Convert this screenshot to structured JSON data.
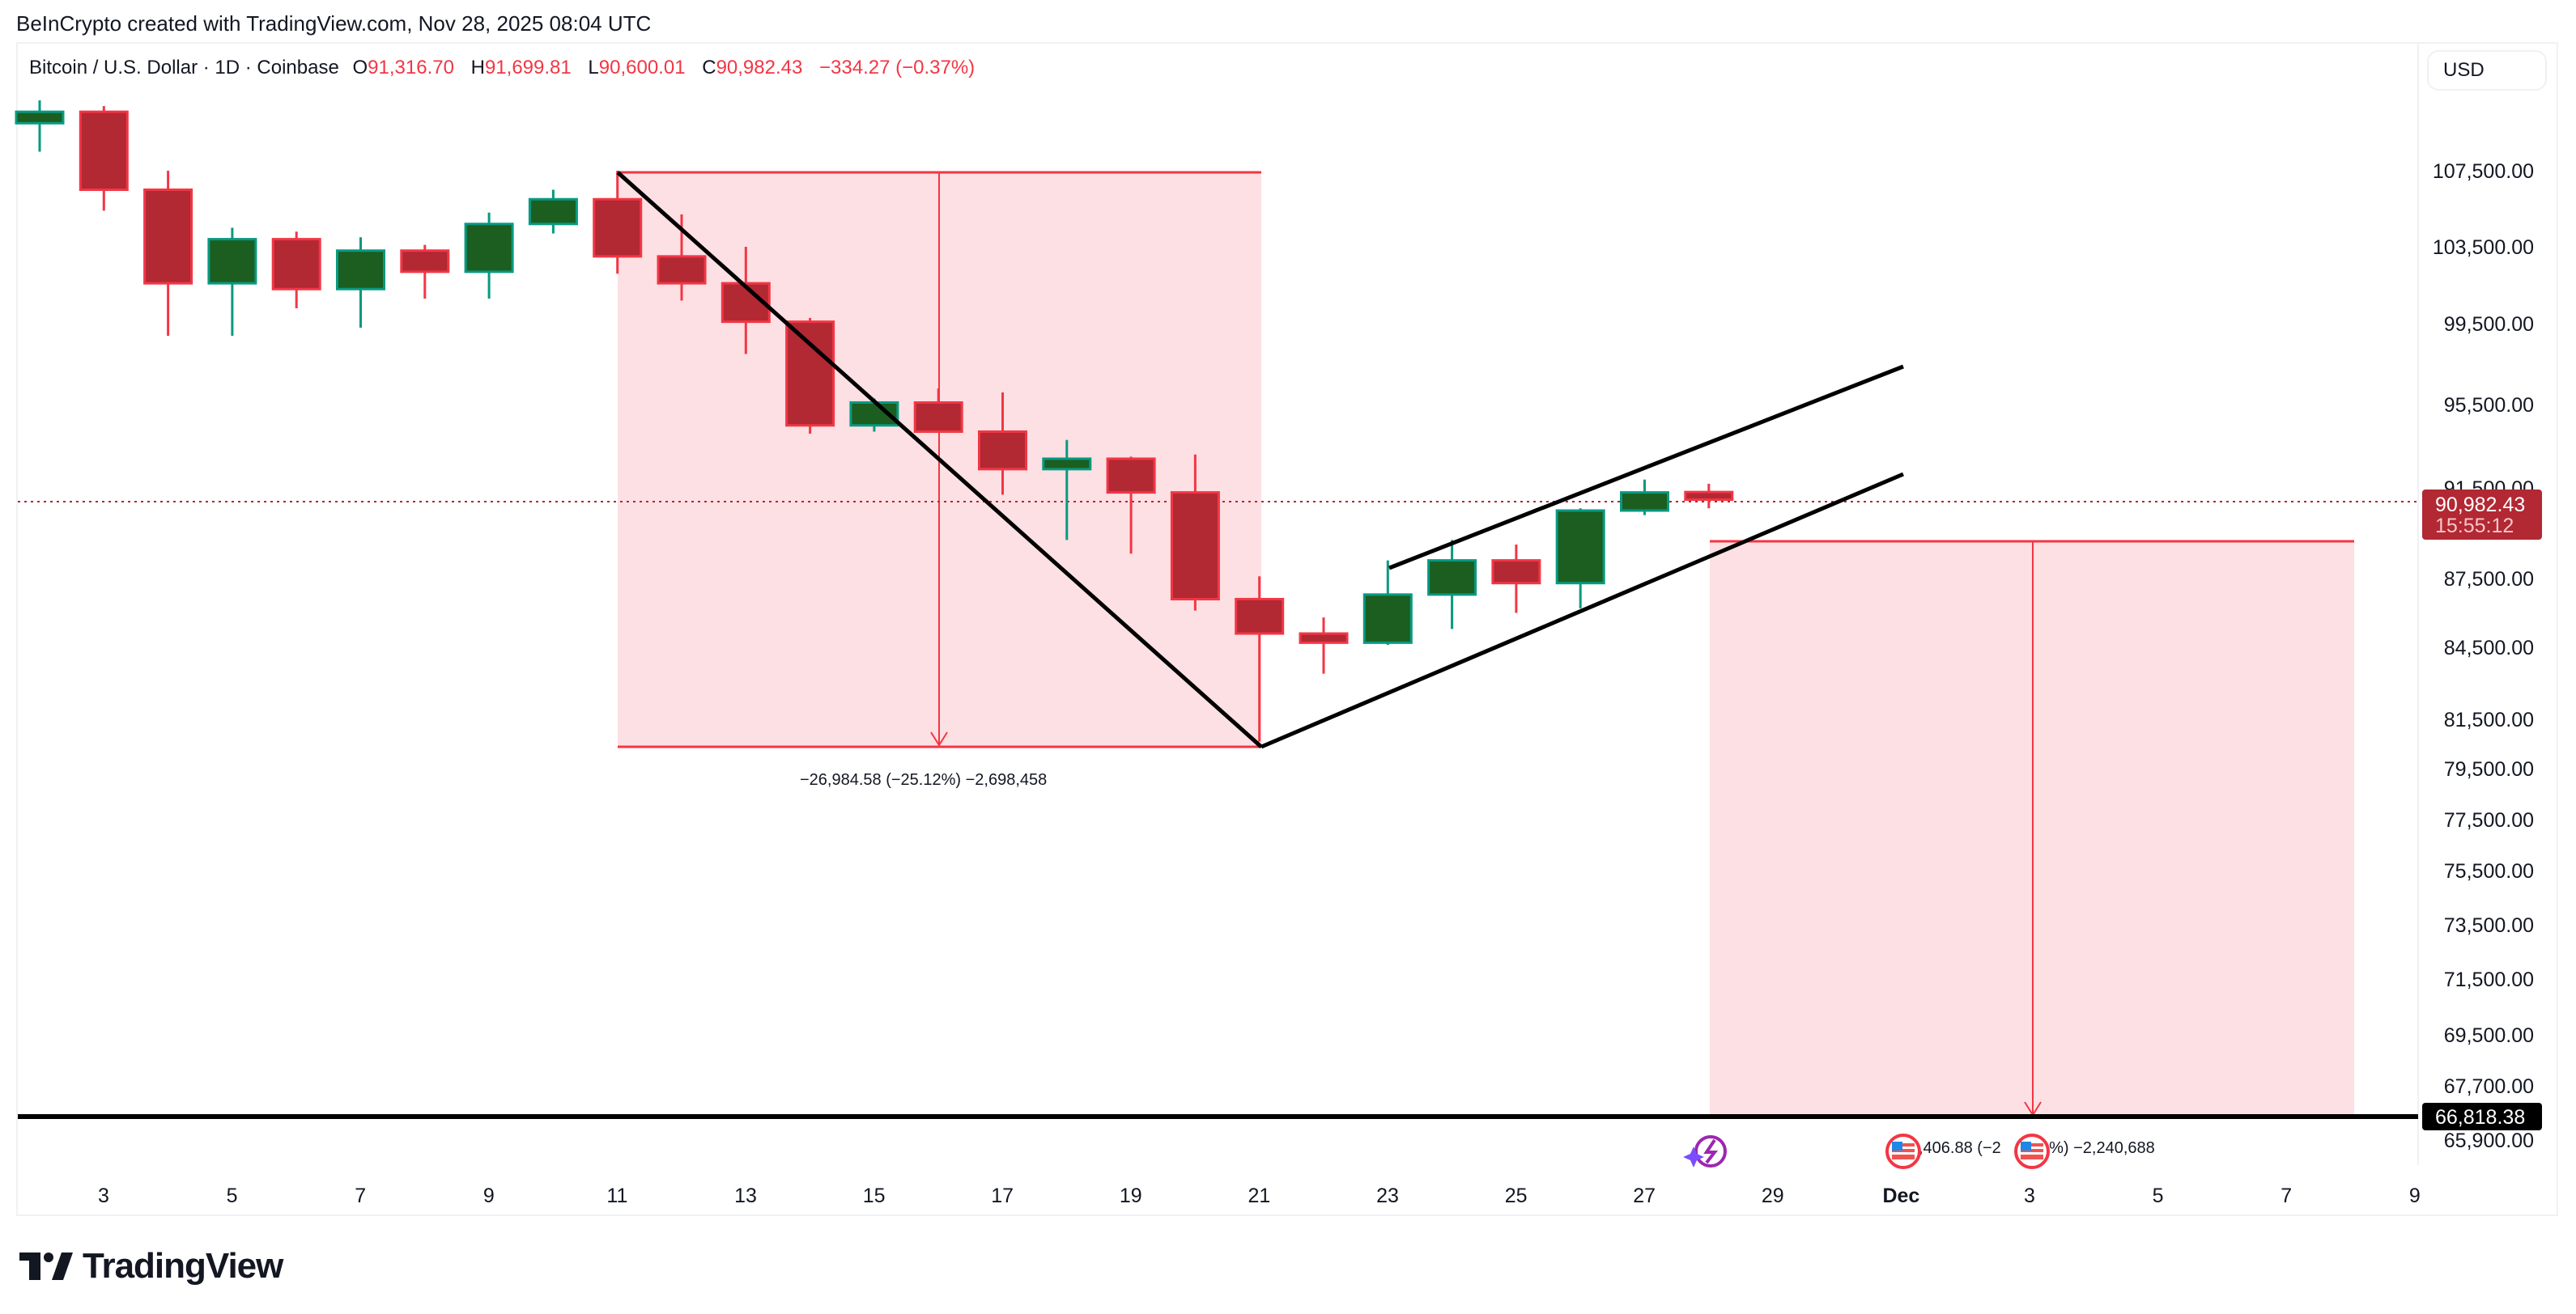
{
  "attribution": "BeInCrypto created with TradingView.com, Nov 28, 2025 08:04 UTC",
  "legend": {
    "symbol": "Bitcoin / U.S. Dollar · 1D · Coinbase",
    "open_label": "O",
    "open": "91,316.70",
    "high_label": "H",
    "high": "91,699.81",
    "low_label": "L",
    "low": "90,600.01",
    "close_label": "C",
    "close": "90,982.43",
    "change": "−334.27 (−0.37%)"
  },
  "currency_button": "USD",
  "price_axis": {
    "ticks": [
      "107,500.00",
      "103,500.00",
      "99,500.00",
      "95,500.00",
      "91,500.00",
      "87,500.00",
      "84,500.00",
      "81,500.00",
      "79,500.00",
      "77,500.00",
      "75,500.00",
      "73,500.00",
      "71,500.00",
      "69,500.00",
      "67,700.00",
      "65,900.00"
    ],
    "last_price": "90,982.43",
    "countdown": "15:55:12",
    "support_level": "66,818.38"
  },
  "time_axis": {
    "ticks": [
      "3",
      "5",
      "7",
      "9",
      "11",
      "13",
      "15",
      "17",
      "19",
      "21",
      "23",
      "25",
      "27",
      "29",
      "Dec",
      "3",
      "5",
      "7",
      "9"
    ]
  },
  "measurements": {
    "first": "−26,984.58 (−25.12%) −2,698,458",
    "second": ",406.88 (−2",
    "second_tail": "2%) −2,240,688"
  },
  "logo": "TradingView",
  "colors": {
    "up_body": "#1b5e20",
    "up_border": "#089981",
    "down_body": "#b22833",
    "down_border": "#f23645",
    "measure_fill": "#fde0e3",
    "measure_line": "#f23645",
    "last_price_bg": "#b22833",
    "support_bg": "#000000"
  },
  "chart_data": {
    "type": "candlestick",
    "title": "Bitcoin / U.S. Dollar · 1D · Coinbase",
    "xlabel": "",
    "ylabel": "USD",
    "ylim": [
      65000,
      109000
    ],
    "categories": [
      "Nov 2",
      "Nov 3",
      "Nov 4",
      "Nov 5",
      "Nov 6",
      "Nov 7",
      "Nov 8",
      "Nov 9",
      "Nov 10",
      "Nov 11",
      "Nov 12",
      "Nov 13",
      "Nov 14",
      "Nov 15",
      "Nov 16",
      "Nov 17",
      "Nov 18",
      "Nov 19",
      "Nov 20",
      "Nov 21",
      "Nov 22",
      "Nov 23",
      "Nov 24",
      "Nov 25",
      "Nov 26",
      "Nov 27",
      "Nov 28"
    ],
    "series": [
      {
        "name": "open",
        "values": [
          110000,
          110600,
          106500,
          101600,
          103900,
          101300,
          103300,
          102200,
          104700,
          106000,
          103000,
          101600,
          99600,
          94500,
          95600,
          94200,
          92400,
          92900,
          91300,
          86600,
          85100,
          84700,
          86800,
          88300,
          87300,
          90500,
          91317
        ]
      },
      {
        "name": "high",
        "values": [
          111200,
          110900,
          107500,
          104500,
          104300,
          104000,
          103600,
          105300,
          106500,
          107500,
          105200,
          103500,
          99800,
          95800,
          96300,
          96100,
          93800,
          93000,
          93100,
          87600,
          85800,
          88300,
          89200,
          89000,
          90600,
          91900,
          91700
        ]
      },
      {
        "name": "close",
        "values": [
          110600,
          106500,
          101600,
          103900,
          101300,
          103300,
          102200,
          104700,
          106000,
          103000,
          101600,
          99600,
          94500,
          95600,
          94200,
          92400,
          92900,
          91300,
          86600,
          85100,
          84700,
          86800,
          88300,
          87300,
          90500,
          91300,
          90982
        ]
      },
      {
        "name": "low",
        "values": [
          108500,
          105400,
          98900,
          98900,
          100300,
          99300,
          100800,
          100800,
          104200,
          102100,
          100700,
          98000,
          94100,
          94200,
          94200,
          91200,
          89200,
          88600,
          86100,
          80600,
          83400,
          84600,
          85300,
          86000,
          86200,
          90300,
          90600
        ]
      }
    ],
    "annotations": [
      {
        "type": "price_range",
        "label": "−26,984.58 (−25.12%) −2,698,458",
        "from": "Nov 11",
        "to": "Nov 21",
        "top": 107450,
        "bottom": 80470
      },
      {
        "type": "price_range",
        "label": "−2?,406.88 (−2?.?2%) −2,240,688",
        "from": "Nov 28",
        "to": "Dec 8",
        "top": 89230,
        "bottom": 66818
      },
      {
        "type": "trendline",
        "from": [
          "Nov 11",
          107450
        ],
        "to": [
          "Nov 21",
          80470
        ]
      },
      {
        "type": "rising_channel",
        "upper": [
          [
            "Nov 23",
            88300
          ],
          [
            "Dec 1",
            97300
          ]
        ],
        "lower": [
          [
            "Nov 21",
            80470
          ],
          [
            "Dec 1",
            92400
          ]
        ]
      },
      {
        "type": "horizontal_line",
        "value": 66818.38
      },
      {
        "type": "last_price_line",
        "value": 90982.43
      }
    ],
    "grid": false,
    "legend_position": "top-left"
  }
}
